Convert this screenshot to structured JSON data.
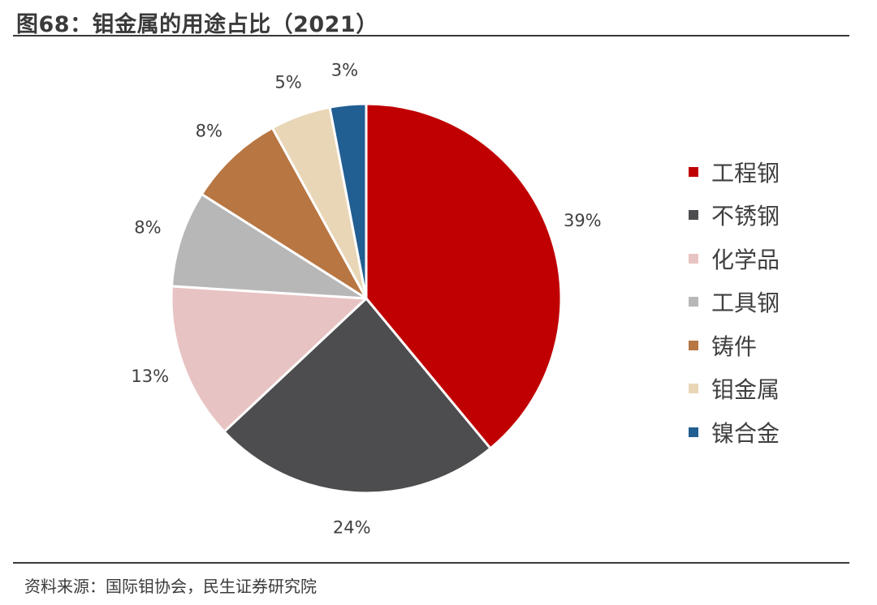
{
  "header": {
    "title": "图68：钼金属的用途占比（2021）"
  },
  "footer": {
    "source": "资料来源：国际钼协会，民生证券研究院"
  },
  "chart_data": {
    "type": "pie",
    "title": "图68：钼金属的用途占比（2021）",
    "slices": [
      {
        "label": "工程钢",
        "value": 39,
        "display": "39%",
        "color": "#C00000"
      },
      {
        "label": "不锈钢",
        "value": 24,
        "display": "24%",
        "color": "#4D4D4F"
      },
      {
        "label": "化学品",
        "value": 13,
        "display": "13%",
        "color": "#E8C3C3"
      },
      {
        "label": "工具钢",
        "value": 8,
        "display": "8%",
        "color": "#B7B7B7"
      },
      {
        "label": "铸件",
        "value": 8,
        "display": "8%",
        "color": "#B87642"
      },
      {
        "label": "钼金属",
        "value": 5,
        "display": "5%",
        "color": "#E8D6B6"
      },
      {
        "label": "镍合金",
        "value": 3,
        "display": "3%",
        "color": "#215E92"
      }
    ],
    "legend_position": "right",
    "start_angle": "12 o'clock",
    "direction": "clockwise"
  }
}
